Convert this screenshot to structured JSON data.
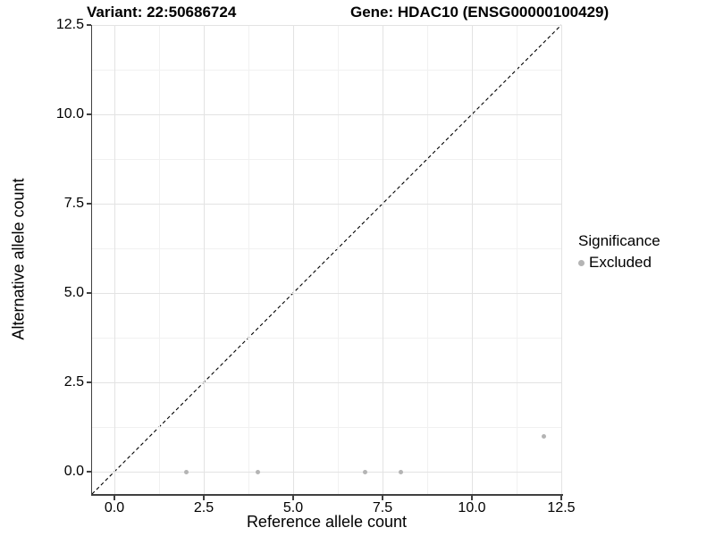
{
  "chart_data": {
    "type": "scatter",
    "title_left": "Variant: 22:50686724",
    "title_right": "Gene: HDAC10 (ENSG00000100429)",
    "xlabel": "Reference allele count",
    "ylabel": "Alternative allele count",
    "xlim": [
      -0.625,
      12.5
    ],
    "ylim": [
      -0.625,
      12.5
    ],
    "x_ticks": {
      "values": [
        0,
        2.5,
        5,
        7.5,
        10,
        12.5
      ],
      "labels": [
        "0.0",
        "2.5",
        "5.0",
        "7.5",
        "10.0",
        "12.5"
      ]
    },
    "y_ticks": {
      "values": [
        0,
        2.5,
        5,
        7.5,
        10,
        12.5
      ],
      "labels": [
        "0.0",
        "2.5",
        "5.0",
        "7.5",
        "10.0",
        "12.5"
      ]
    },
    "x_minor": [
      1.25,
      3.75,
      6.25,
      8.75,
      11.25
    ],
    "y_minor": [
      1.25,
      3.75,
      6.25,
      8.75,
      11.25
    ],
    "grid": "major+minor",
    "legend": {
      "title": "Significance",
      "position": "right",
      "items": [
        {
          "label": "Excluded",
          "color": "#b4b4b4"
        }
      ]
    },
    "series": [
      {
        "name": "Excluded",
        "color": "#b4b4b4",
        "points": [
          [
            2,
            0
          ],
          [
            4,
            0
          ],
          [
            7,
            0
          ],
          [
            8,
            0
          ],
          [
            12,
            1
          ]
        ]
      }
    ],
    "reference_line": {
      "equation": "y = x",
      "style": "dashed",
      "color": "#000000"
    },
    "colors": {
      "axis_line": "#404040",
      "grid_major": "#e3e3e3",
      "grid_minor": "#f1f1f1",
      "background": "#ffffff",
      "text": "#000000"
    }
  }
}
